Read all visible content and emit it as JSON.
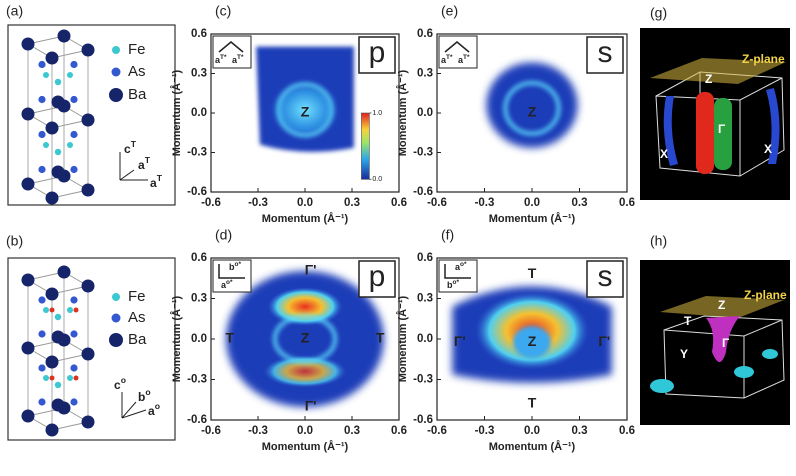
{
  "panels": [
    {
      "label": "(a)",
      "legend": [
        "Fe",
        "As",
        "Ba"
      ],
      "axes": [
        {
          "base": "c",
          "sup": "T"
        },
        {
          "base": "a",
          "sup": "T"
        },
        {
          "base": "a",
          "sup": "T"
        }
      ]
    },
    {
      "label": "(b)",
      "legend": [
        "Fe",
        "As",
        "Ba"
      ],
      "axes": [
        {
          "base": "c",
          "sup": "o"
        },
        {
          "base": "b",
          "sup": "o"
        },
        {
          "base": "a",
          "sup": "o"
        }
      ]
    },
    {
      "label": "(g)",
      "plane": "Z-plane",
      "points": [
        "Z",
        "Γ",
        "X",
        "X"
      ]
    },
    {
      "label": "(h)",
      "plane": "Z-plane",
      "points": [
        "Z",
        "T",
        "Y",
        "Γ"
      ]
    }
  ],
  "chart_data": [
    {
      "type": "heatmap",
      "panel": "(c)",
      "polarization": "p",
      "inset_axes": [
        {
          "base": "a",
          "sup": "T*"
        },
        {
          "base": "a",
          "sup": "T*"
        }
      ],
      "annotations": [
        "Z"
      ],
      "xlabel": "Momentum (Å⁻¹)",
      "ylabel": "Momentum (Å⁻¹)",
      "xlim": [
        -0.6,
        0.6
      ],
      "ylim": [
        -0.6,
        0.6
      ],
      "xticks": [
        -0.6,
        -0.3,
        {
          "value": 0,
          "label": "0.0"
        },
        0.3,
        0.6
      ],
      "yticks": [
        -0.6,
        -0.3,
        {
          "value": 0,
          "label": "0.0"
        },
        0.3,
        0.6
      ],
      "clim": [
        0,
        1
      ],
      "colorbar_ticks": [
        {
          "value": 1,
          "label": "1.0"
        },
        {
          "value": 0,
          "label": "0.0"
        }
      ]
    },
    {
      "type": "heatmap",
      "panel": "(d)",
      "polarization": "p",
      "inset_axes": [
        {
          "base": "b",
          "sup": "o*"
        },
        {
          "base": "a",
          "sup": "o*"
        }
      ],
      "annotations": [
        "Z",
        "T",
        "T",
        "Γ'",
        "Γ'"
      ],
      "xlabel": "Momentum (Å⁻¹)",
      "ylabel": "Momentum (Å⁻¹)",
      "xlim": [
        -0.6,
        0.6
      ],
      "ylim": [
        -0.6,
        0.6
      ],
      "xticks": [
        -0.6,
        -0.3,
        {
          "value": 0,
          "label": "0.0"
        },
        0.3,
        0.6
      ],
      "yticks": [
        -0.6,
        -0.3,
        {
          "value": 0,
          "label": "0.0"
        },
        0.3,
        0.6
      ]
    },
    {
      "type": "heatmap",
      "panel": "(e)",
      "polarization": "s",
      "inset_axes": [
        {
          "base": "a",
          "sup": "T*"
        },
        {
          "base": "a",
          "sup": "T*"
        }
      ],
      "annotations": [
        "Z"
      ],
      "xlabel": "Momentum (Å⁻¹)",
      "ylabel": "Momentum (Å⁻¹)",
      "xlim": [
        -0.6,
        0.6
      ],
      "ylim": [
        -0.6,
        0.6
      ],
      "xticks": [
        -0.6,
        -0.3,
        {
          "value": 0,
          "label": "0.0"
        },
        0.3,
        0.6
      ],
      "yticks": [
        -0.6,
        -0.3,
        {
          "value": 0,
          "label": "0.0"
        },
        0.3,
        0.6
      ]
    },
    {
      "type": "heatmap",
      "panel": "(f)",
      "polarization": "s",
      "inset_axes": [
        {
          "base": "a",
          "sup": "o*"
        },
        {
          "base": "b",
          "sup": "o*"
        }
      ],
      "annotations": [
        "Z",
        "T",
        "T",
        "Γ'",
        "Γ'"
      ],
      "xlabel": "Momentum (Å⁻¹)",
      "ylabel": "Momentum (Å⁻¹)",
      "xlim": [
        -0.6,
        0.6
      ],
      "ylim": [
        -0.6,
        0.6
      ],
      "xticks": [
        -0.6,
        -0.3,
        {
          "value": 0,
          "label": "0.0"
        },
        0.3,
        0.6
      ],
      "yticks": [
        -0.6,
        -0.3,
        {
          "value": 0,
          "label": "0.0"
        },
        0.3,
        0.6
      ]
    }
  ]
}
